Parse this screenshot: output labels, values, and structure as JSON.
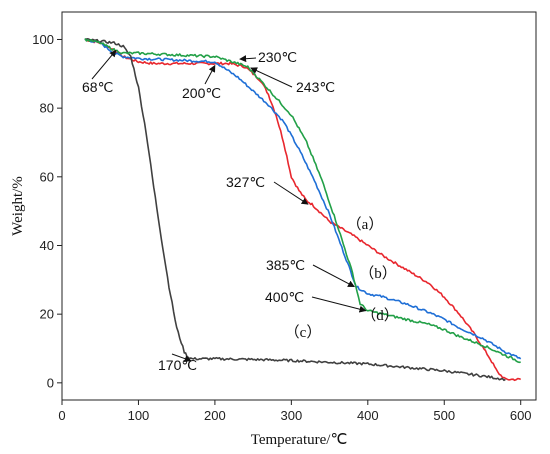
{
  "chart_data": {
    "type": "line",
    "xlabel": "Temperature/℃",
    "ylabel": "Weight/%",
    "xlim": [
      0,
      620
    ],
    "ylim": [
      -5,
      108
    ],
    "xticks": [
      0,
      100,
      200,
      300,
      400,
      500,
      600
    ],
    "yticks": [
      0,
      20,
      40,
      60,
      80,
      100
    ],
    "grid": false,
    "series": [
      {
        "name": "(a)",
        "color": "#e8272e",
        "x": [
          30,
          50,
          68,
          80,
          100,
          120,
          150,
          200,
          220,
          240,
          260,
          270,
          280,
          290,
          300,
          310,
          320,
          327,
          350,
          380,
          400,
          420,
          450,
          480,
          500,
          520,
          540,
          560,
          570,
          580,
          600
        ],
        "y": [
          100,
          99,
          97,
          95,
          93.5,
          93,
          93,
          93,
          93,
          92,
          88,
          84,
          78,
          70,
          60,
          56,
          53,
          52,
          47,
          43,
          40,
          37,
          33,
          29,
          25,
          20,
          14,
          7,
          3,
          1,
          1
        ]
      },
      {
        "name": "(b)",
        "color": "#1f6fd6",
        "x": [
          30,
          50,
          68,
          80,
          100,
          150,
          200,
          210,
          230,
          250,
          270,
          290,
          310,
          330,
          350,
          370,
          385,
          400,
          420,
          450,
          480,
          500,
          520,
          550,
          580,
          600
        ],
        "y": [
          100,
          99,
          96,
          95,
          94.5,
          94,
          93.5,
          92,
          89,
          85,
          81,
          76,
          68,
          59,
          49,
          37,
          28,
          26,
          25,
          23,
          20.5,
          18.5,
          16,
          13,
          9,
          7
        ]
      },
      {
        "name": "(c)",
        "color": "#404040",
        "x": [
          30,
          50,
          68,
          80,
          90,
          100,
          110,
          120,
          130,
          140,
          150,
          160,
          165,
          170,
          180,
          200,
          250,
          300,
          350,
          400,
          450,
          500,
          550,
          580
        ],
        "y": [
          100,
          99.5,
          99,
          98,
          95,
          86,
          73,
          57,
          42,
          28,
          16,
          9,
          7.5,
          7,
          7,
          7,
          6.8,
          6.5,
          6,
          5.5,
          4.5,
          3.5,
          2,
          1
        ]
      },
      {
        "name": "(d)",
        "color": "#22a047",
        "x": [
          30,
          50,
          68,
          80,
          100,
          150,
          200,
          230,
          243,
          260,
          280,
          300,
          320,
          340,
          360,
          380,
          390,
          400,
          420,
          450,
          480,
          500,
          520,
          550,
          580,
          600
        ],
        "y": [
          100,
          99,
          97,
          96,
          96,
          95.5,
          95,
          93,
          92,
          88,
          83,
          78,
          70,
          59,
          46,
          32,
          23,
          21,
          20,
          18.5,
          17,
          15.5,
          13.5,
          11,
          8,
          6
        ]
      }
    ],
    "annotations": [
      {
        "text": "68℃",
        "x": 68,
        "y": 98
      },
      {
        "text": "200℃",
        "x": 200,
        "y": 93
      },
      {
        "text": "230℃",
        "x": 230,
        "y": 94
      },
      {
        "text": "243℃",
        "x": 243,
        "y": 92
      },
      {
        "text": "327℃",
        "x": 327,
        "y": 52
      },
      {
        "text": "385℃",
        "x": 385,
        "y": 28
      },
      {
        "text": "400℃",
        "x": 400,
        "y": 21
      },
      {
        "text": "170℃",
        "x": 170,
        "y": 7
      }
    ],
    "curve_labels": [
      "（a）",
      "（b）",
      "（c）",
      "（d）"
    ]
  }
}
